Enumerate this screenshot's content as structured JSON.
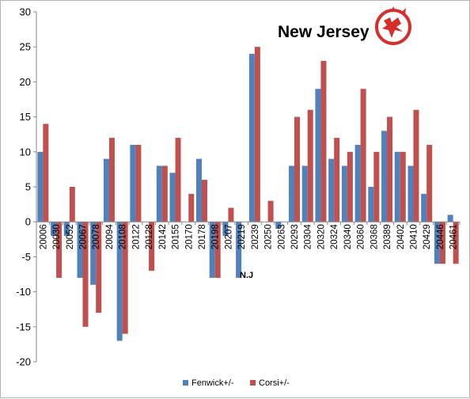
{
  "chart_data": {
    "type": "bar",
    "title": "New Jersey",
    "annotation": "N.J",
    "logo": "new-jersey-devils-logo",
    "categories": [
      "20006",
      "20030",
      "20052",
      "20067",
      "20078",
      "20094",
      "20108",
      "20122",
      "20128",
      "20142",
      "20155",
      "20170",
      "20178",
      "20198",
      "20207",
      "20219",
      "20239",
      "20250",
      "20263",
      "20293",
      "20304",
      "20320",
      "20324",
      "20340",
      "20360",
      "20368",
      "20389",
      "20402",
      "20410",
      "20429",
      "20446",
      "20461"
    ],
    "series": [
      {
        "name": "Fenwick+/-",
        "color": "#4f81bd",
        "values": [
          10,
          -2,
          -2,
          -8,
          -9,
          9,
          -17,
          11,
          0,
          8,
          7,
          0,
          9,
          -8,
          -2,
          -8,
          24,
          0,
          -1,
          8,
          8,
          19,
          9,
          8,
          11,
          5,
          13,
          10,
          8,
          4,
          -6,
          1
        ]
      },
      {
        "name": "Corsi+/-",
        "color": "#c0504d",
        "values": [
          14,
          -8,
          5,
          -15,
          -13,
          12,
          -16,
          11,
          -7,
          8,
          12,
          4,
          6,
          -8,
          2,
          0,
          25,
          3,
          0,
          15,
          16,
          23,
          12,
          10,
          19,
          10,
          15,
          10,
          16,
          11,
          -6,
          -6
        ]
      }
    ],
    "ylim": [
      -20,
      30
    ],
    "yticks": [
      -20,
      -15,
      -10,
      -5,
      0,
      5,
      10,
      15,
      20,
      25,
      30
    ],
    "grid": false,
    "legend_position": "bottom"
  }
}
